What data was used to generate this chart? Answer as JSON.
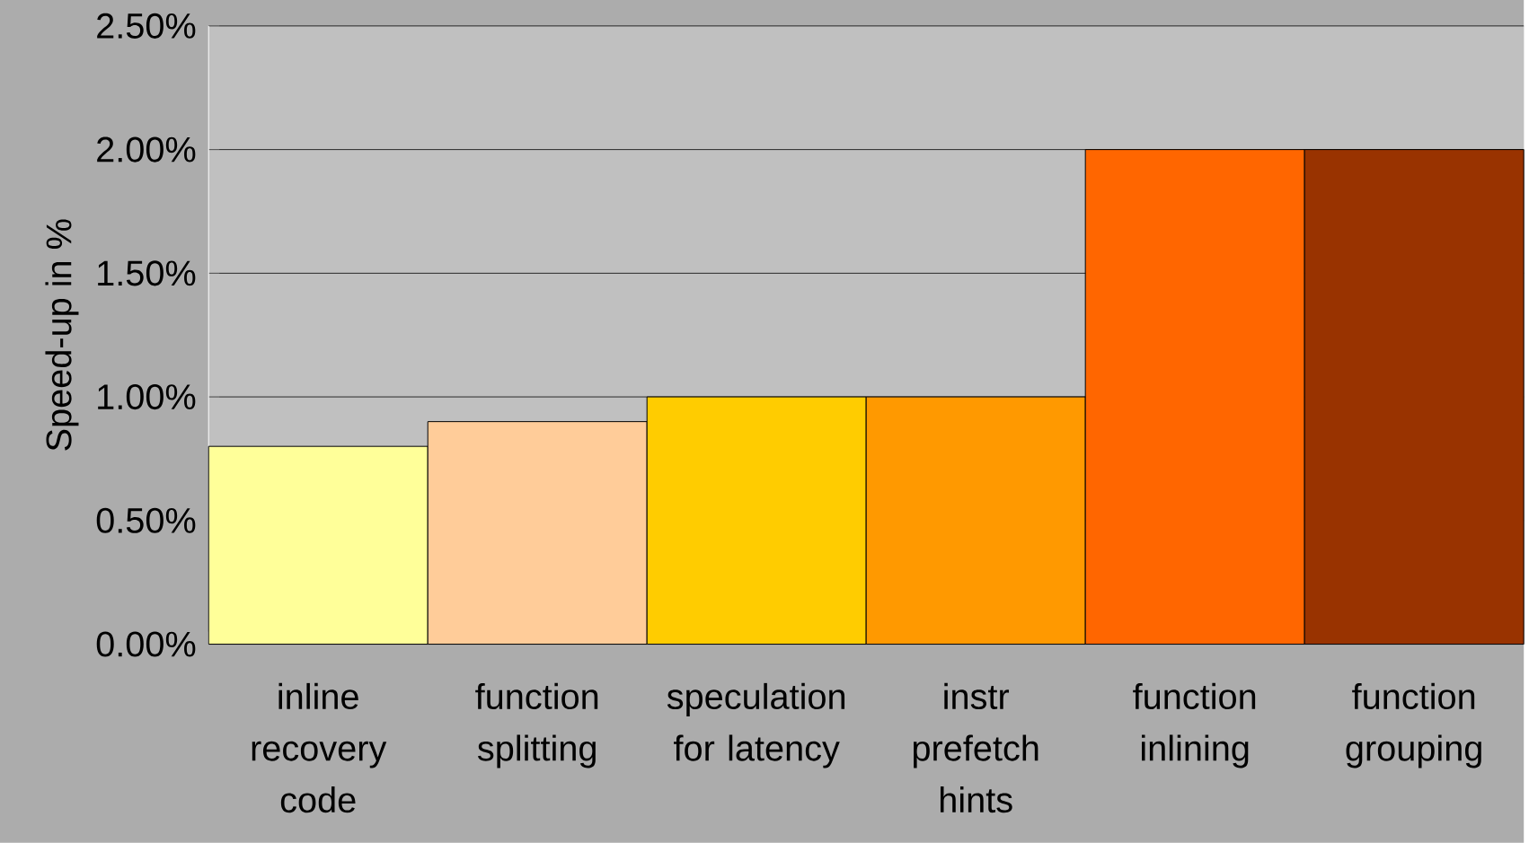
{
  "chart_data": {
    "type": "bar",
    "ylabel": "Speed-up in %",
    "categories": [
      "inline recovery code",
      "function splitting",
      "speculation for latency",
      "instr prefetch hints",
      "function inlining",
      "function grouping"
    ],
    "values": [
      0.8,
      0.9,
      1.0,
      1.0,
      2.0,
      2.0
    ],
    "colors": [
      "#ffff99",
      "#ffcc99",
      "#ffcc00",
      "#ff9900",
      "#ff6600",
      "#993300"
    ],
    "ylim": [
      0,
      2.5
    ],
    "yticks": [
      {
        "value": 0,
        "label": "0.00%"
      },
      {
        "value": 0.5,
        "label": "0.50%"
      },
      {
        "value": 1.0,
        "label": "1.00%"
      },
      {
        "value": 1.5,
        "label": "1.50%"
      },
      {
        "value": 2.0,
        "label": "2.00%"
      },
      {
        "value": 2.5,
        "label": "2.50%"
      }
    ],
    "grid": "y"
  }
}
